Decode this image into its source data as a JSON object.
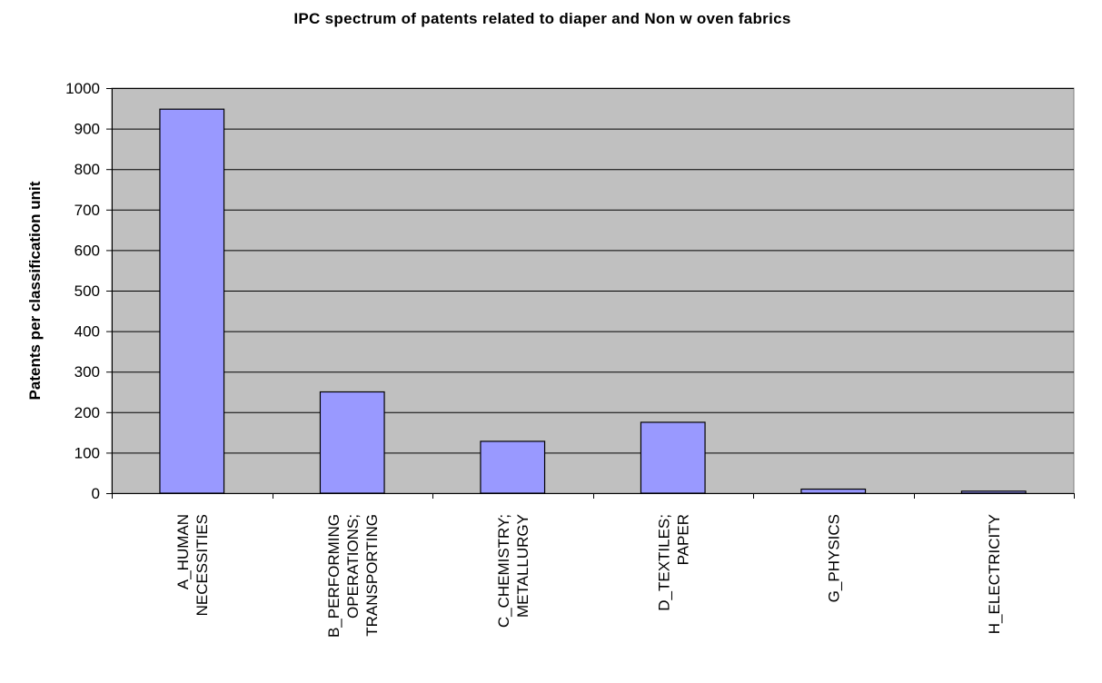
{
  "chart_data": {
    "type": "bar",
    "title": "IPC spectrum of patents related to diaper and Non w oven fabrics",
    "xlabel": "",
    "ylabel": "Patents per classification unit",
    "ylim": [
      0,
      1000
    ],
    "yticks": [
      0,
      100,
      200,
      300,
      400,
      500,
      600,
      700,
      800,
      900,
      1000
    ],
    "grid": true,
    "legend": "none",
    "categories": [
      [
        "A_HUMAN",
        "NECESSITIES"
      ],
      [
        "B_PERFORMING",
        "OPERATIONS;",
        "TRANSPORTING"
      ],
      [
        "C_CHEMISTRY;",
        "METALLURGY"
      ],
      [
        "D_TEXTILES;",
        "PAPER"
      ],
      [
        "G_PHYSICS"
      ],
      [
        "H_ELECTRICITY"
      ]
    ],
    "values": [
      948,
      250,
      128,
      175,
      10,
      5
    ],
    "colors": {
      "bar": "#9999ff",
      "plot_background": "#c0c0c0",
      "gridline": "#000000"
    }
  }
}
